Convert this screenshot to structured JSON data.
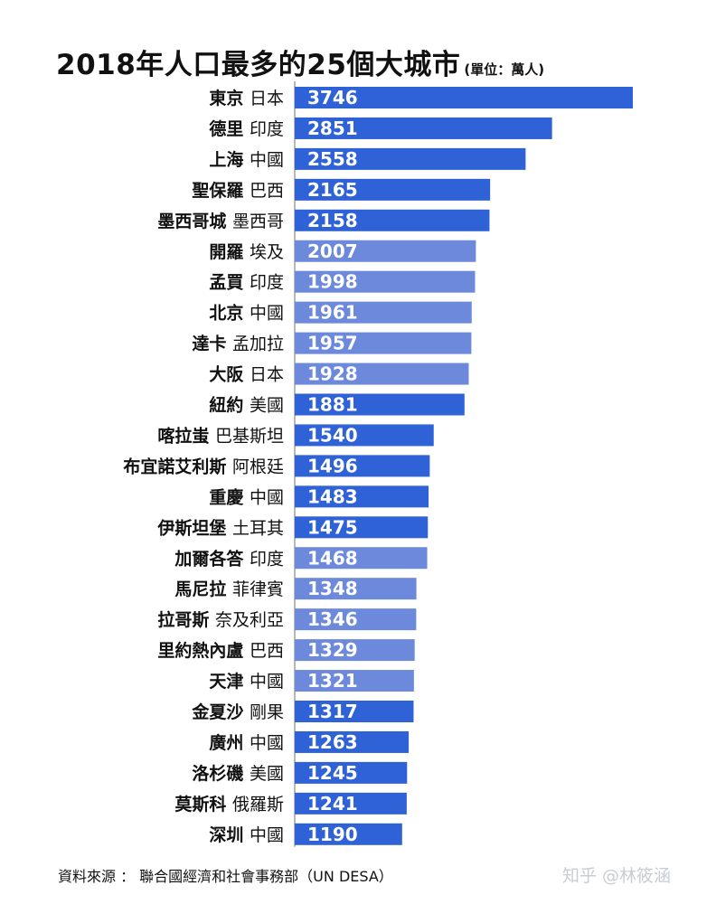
{
  "title": "2018年人口最多的25個大城市",
  "unit_note": "(單位：萬人)",
  "source": "資料來源 ： 聯合國經濟和社會事務部（UN DESA）",
  "watermark": "知乎 @林筱涵",
  "colors": {
    "dark": "#2f62d6",
    "light": "#6c89dc",
    "axis": "#888888",
    "label": "#ffffff"
  },
  "chart_data": {
    "type": "bar",
    "orientation": "horizontal",
    "title": "2018年人口最多的25個大城市",
    "unit": "萬人",
    "categories": [
      {
        "city": "東京",
        "country": "日本"
      },
      {
        "city": "德里",
        "country": "印度"
      },
      {
        "city": "上海",
        "country": "中國"
      },
      {
        "city": "聖保羅",
        "country": "巴西"
      },
      {
        "city": "墨西哥城",
        "country": "墨西哥"
      },
      {
        "city": "開羅",
        "country": "埃及"
      },
      {
        "city": "孟買",
        "country": "印度"
      },
      {
        "city": "北京",
        "country": "中國"
      },
      {
        "city": "達卡",
        "country": "孟加拉"
      },
      {
        "city": "大阪",
        "country": "日本"
      },
      {
        "city": "紐約",
        "country": "美國"
      },
      {
        "city": "喀拉蚩",
        "country": "巴基斯坦"
      },
      {
        "city": "布宜諾艾利斯",
        "country": "阿根廷"
      },
      {
        "city": "重慶",
        "country": "中國"
      },
      {
        "city": "伊斯坦堡",
        "country": "土耳其"
      },
      {
        "city": "加爾各答",
        "country": "印度"
      },
      {
        "city": "馬尼拉",
        "country": "菲律賓"
      },
      {
        "city": "拉哥斯",
        "country": "奈及利亞"
      },
      {
        "city": "里約熱內盧",
        "country": "巴西"
      },
      {
        "city": "天津",
        "country": "中國"
      },
      {
        "city": "金夏沙",
        "country": "剛果"
      },
      {
        "city": "廣州",
        "country": "中國"
      },
      {
        "city": "洛杉磯",
        "country": "美國"
      },
      {
        "city": "莫斯科",
        "country": "俄羅斯"
      },
      {
        "city": "深圳",
        "country": "中國"
      }
    ],
    "values": [
      3746,
      2851,
      2558,
      2165,
      2158,
      2007,
      1998,
      1961,
      1957,
      1928,
      1881,
      1540,
      1496,
      1483,
      1475,
      1468,
      1348,
      1346,
      1329,
      1321,
      1317,
      1263,
      1245,
      1241,
      1190
    ],
    "bar_shade": [
      "dark",
      "dark",
      "dark",
      "dark",
      "dark",
      "light",
      "light",
      "light",
      "light",
      "light",
      "dark",
      "dark",
      "dark",
      "dark",
      "dark",
      "light",
      "light",
      "light",
      "light",
      "light",
      "dark",
      "dark",
      "dark",
      "dark",
      "dark"
    ],
    "xlim": [
      0,
      3746
    ],
    "grid": false,
    "legend": "none"
  }
}
